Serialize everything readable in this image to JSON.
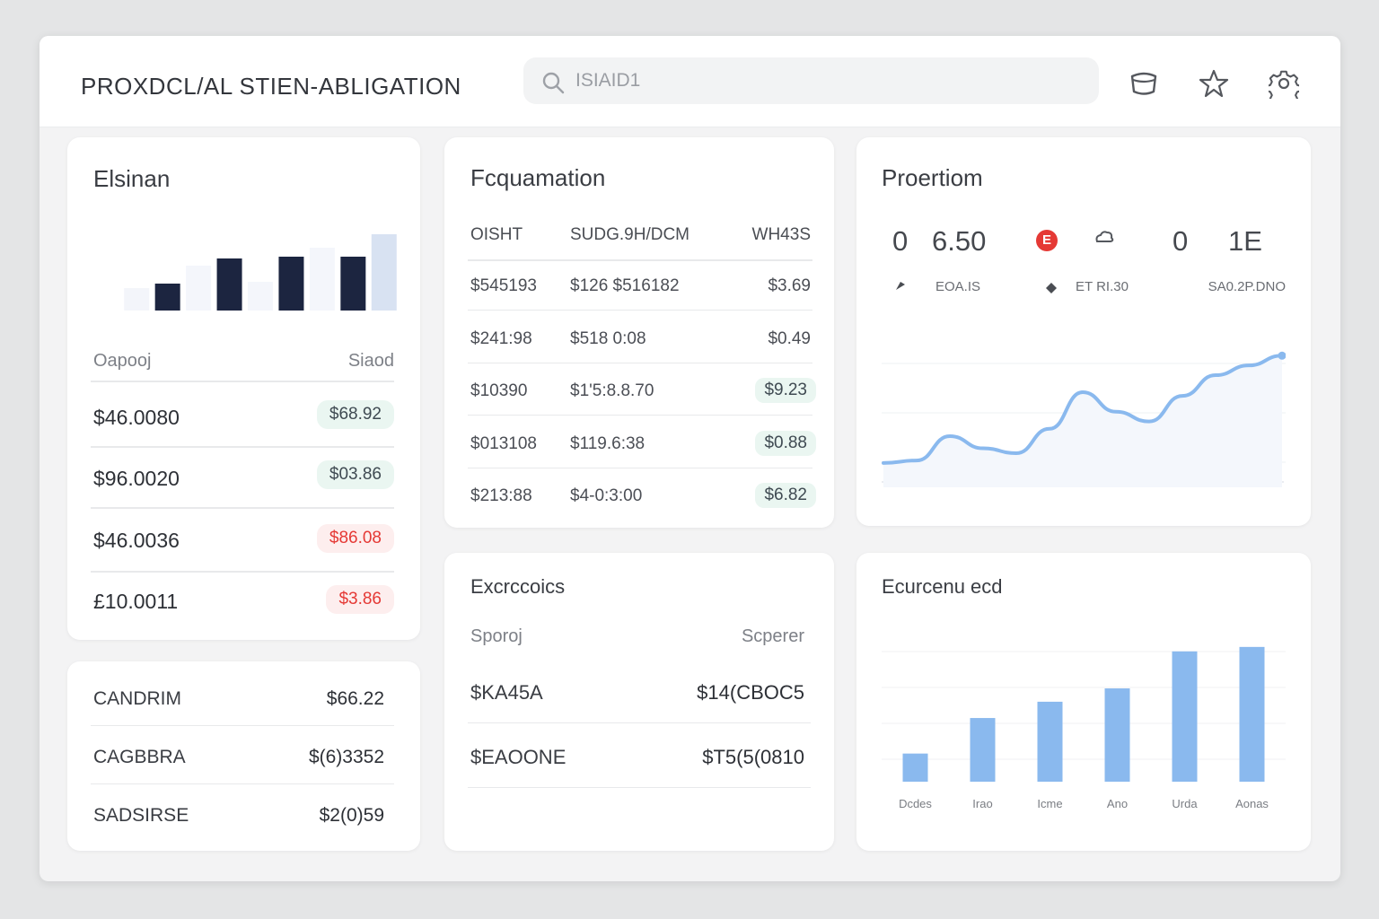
{
  "header": {
    "title": "PROXDCL/AL STIEN-ABLIGATION",
    "search_placeholder": "ISIAID1"
  },
  "icons": {
    "search": "search-icon",
    "cup": "cup-icon",
    "favorite": "star-icon",
    "settings": "gear-icon"
  },
  "colors": {
    "accent_blue": "#8ab9ee",
    "dark_bar": "#1c2540",
    "negative": "#e53935",
    "positive_pill_bg": "#eaf6f1"
  },
  "card_summary": {
    "title": "Elsinan",
    "col_left": "Oapooj",
    "col_right": "Siaod",
    "rows": [
      {
        "amount": "$46.0080",
        "change": "$68.92",
        "trend": "positive"
      },
      {
        "amount": "$96.0020",
        "change": "$03.86",
        "trend": "positive"
      },
      {
        "amount": "$46.0036",
        "change": "$86.08",
        "trend": "negative"
      },
      {
        "amount": "£10.0011",
        "change": "$3.86",
        "trend": "negative"
      }
    ]
  },
  "card_categories": {
    "rows": [
      {
        "label": "CANDRIM",
        "value": "$66.22"
      },
      {
        "label": "CAGBBRA",
        "value": "$(6)3352"
      },
      {
        "label": "SADSIRSE",
        "value": "$2(0)59"
      }
    ]
  },
  "card_table": {
    "title": "Fcquamation",
    "headers": [
      "OISHT",
      "SUDG.9H/DCM",
      "WH43S"
    ],
    "rows": [
      {
        "c1": "$545193",
        "c2": "$126 $516182",
        "c3": "$3.69",
        "highlight": false
      },
      {
        "c1": "$241:98",
        "c2": "$518 0:08",
        "c3": "$0.49",
        "highlight": false
      },
      {
        "c1": "$10390",
        "c2": "$1'5:8.8.70",
        "c3": "$9.23",
        "highlight": true
      },
      {
        "c1": "$013108",
        "c2": "$119.6:38",
        "c3": "$0.88",
        "highlight": true
      },
      {
        "c1": "$213:88",
        "c2": "$4-0:3:00",
        "c3": "$6.82",
        "highlight": true
      }
    ]
  },
  "card_proportion": {
    "title": "Proertiom",
    "stats": [
      {
        "value": "0",
        "sub": ""
      },
      {
        "value": "6.50",
        "sub": "EOA.IS"
      },
      {
        "value": "E",
        "sub": ""
      },
      {
        "value": "",
        "sub": "ET RI.30"
      },
      {
        "value": "0",
        "sub": ""
      },
      {
        "value": "1E",
        "sub": "SA0.2P.DNO"
      }
    ]
  },
  "card_expenses": {
    "title": "Excrccoics",
    "col_left": "Sporoj",
    "col_right": "Scperer",
    "rows": [
      {
        "label": "$KA45A",
        "value": "$14(CBOC5"
      },
      {
        "label": "$EAOONE",
        "value": "$T5(5(0810"
      }
    ]
  },
  "card_economy": {
    "title": "Ecurcenu ecd"
  },
  "chart_data": [
    {
      "type": "bar",
      "title": "",
      "categories": [
        "1",
        "2",
        "3",
        "4",
        "5",
        "6",
        "7",
        "8",
        "9"
      ],
      "series": [
        {
          "values": [
            25,
            30,
            50,
            58,
            32,
            60,
            70,
            60,
            85
          ]
        }
      ],
      "ylim": [
        0,
        90
      ],
      "grid": false
    },
    {
      "type": "area",
      "title": "",
      "x": [
        0,
        1,
        2,
        3,
        4,
        5,
        6,
        7,
        8,
        9,
        10,
        11,
        12
      ],
      "values": [
        20,
        22,
        42,
        32,
        28,
        48,
        78,
        62,
        54,
        75,
        92,
        100,
        108
      ],
      "ylim": [
        0,
        120
      ],
      "grid": true
    },
    {
      "type": "bar",
      "title": "",
      "categories": [
        "Dcdes",
        "Irao",
        "Icme",
        "Ano",
        "Urda",
        "Aonas"
      ],
      "values": [
        19,
        43,
        54,
        63,
        88,
        91
      ],
      "ylim": [
        0,
        100
      ],
      "grid": true
    }
  ]
}
